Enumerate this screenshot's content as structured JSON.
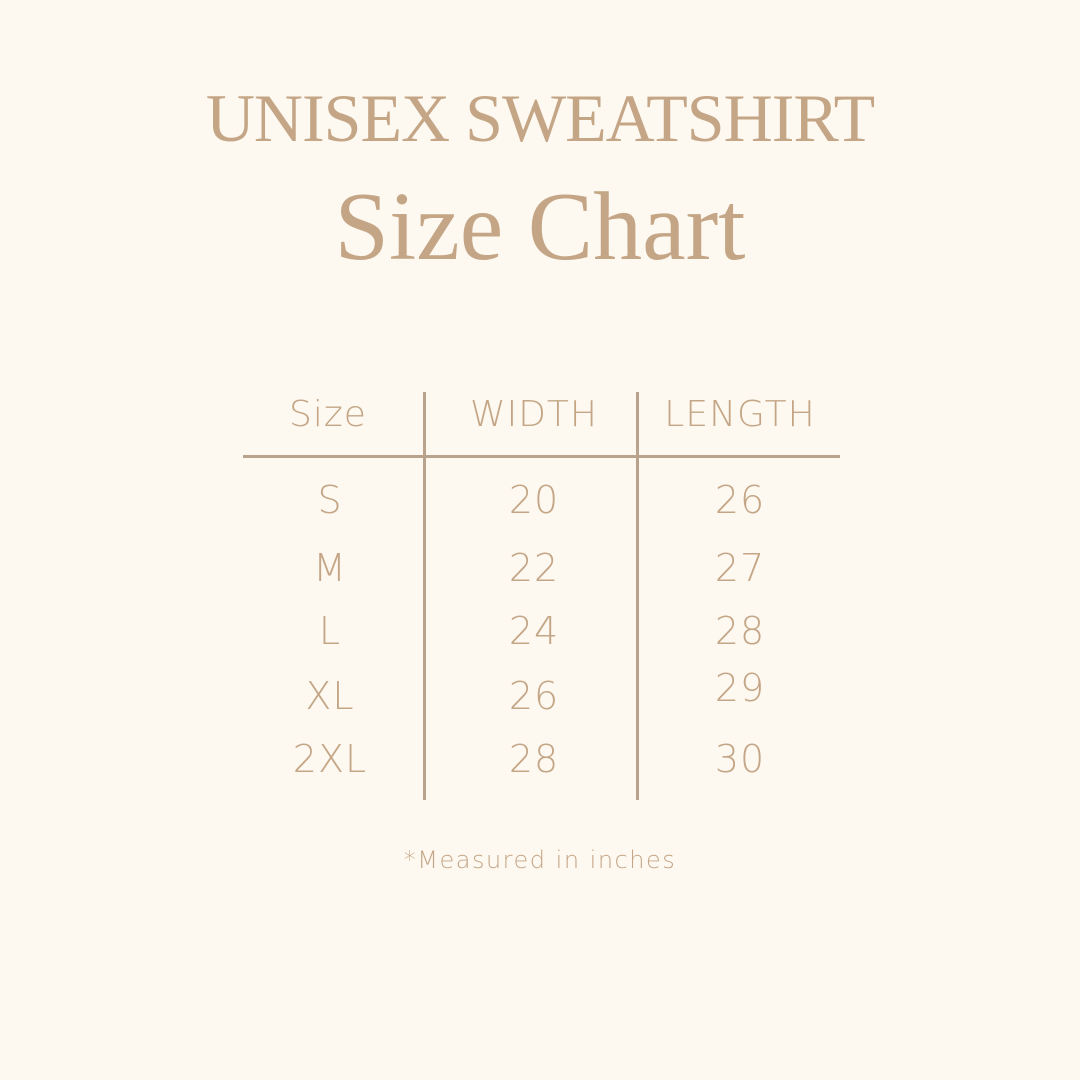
{
  "title": "UNISEX SWEATSHIRT",
  "subtitle": "Size Chart",
  "colors": {
    "background": "#fdf8f0",
    "text": "#c4a686",
    "lines": "#b9a38c"
  },
  "table": {
    "headers": [
      "Size",
      "WIDTH",
      "LENGTH"
    ],
    "rows": [
      [
        "S",
        "20",
        "26"
      ],
      [
        "M",
        "22",
        "27"
      ],
      [
        "L",
        "24",
        "28"
      ],
      [
        "XL",
        "26",
        "29"
      ],
      [
        "2XL",
        "28",
        "30"
      ]
    ]
  },
  "footnote": "*Measured in inches"
}
